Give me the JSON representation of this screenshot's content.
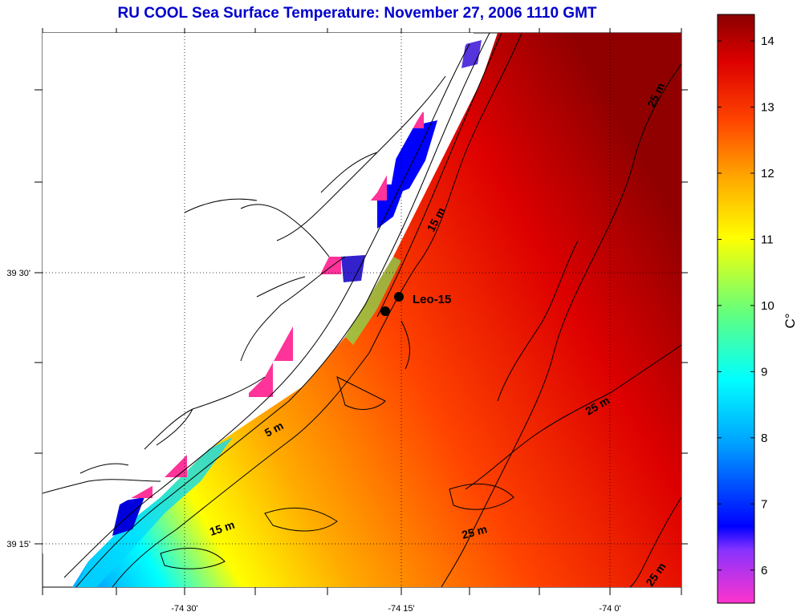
{
  "title": "RU COOL  Sea Surface Temperature:  November 27, 2006 1110 GMT",
  "axes": {
    "x_labels": [
      "-74 30'",
      "-74 15'",
      "-74 0'"
    ],
    "y_labels": [
      "39 30'",
      "39 15'"
    ]
  },
  "colorbar": {
    "unit": "C°",
    "ticks": [
      "6",
      "7",
      "8",
      "9",
      "10",
      "11",
      "12",
      "13",
      "14"
    ],
    "min": 5.5,
    "max": 14.4
  },
  "contour_labels": [
    "5 m",
    "15 m",
    "15 m",
    "25 m",
    "25 m",
    "25 m",
    "25 m"
  ],
  "markers": {
    "station_label": "Leo-15",
    "count": 2
  },
  "colors": {
    "title": "#0000cc",
    "land_missing": "#ffffff",
    "wetland_flag": "#ff3399",
    "contour": "#000000"
  }
}
